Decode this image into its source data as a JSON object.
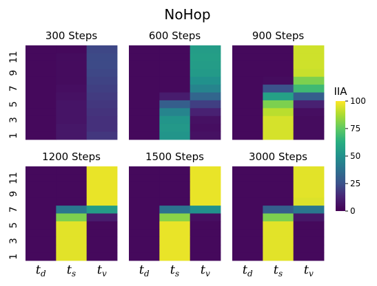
{
  "chart_data": {
    "type": "heatmap",
    "title": "NoHop",
    "colorbar": {
      "label": "IIA",
      "range": [
        0,
        100
      ],
      "ticks": [
        "0",
        "25",
        "50",
        "75",
        "100"
      ],
      "colormap": "viridis"
    },
    "columns": [
      {
        "base": "t",
        "sub": "d"
      },
      {
        "base": "t",
        "sub": "s"
      },
      {
        "base": "t",
        "sub": "v"
      }
    ],
    "y_tick_labels": [
      "1",
      "3",
      "5",
      "7",
      "9",
      "11"
    ],
    "rows_top_to_bottom": [
      12,
      11,
      10,
      9,
      8,
      7,
      6,
      5,
      4,
      3,
      2,
      1
    ],
    "panels": [
      {
        "title": "300 Steps",
        "values": [
          [
            3,
            3,
            22
          ],
          [
            3,
            4,
            23
          ],
          [
            3,
            4,
            23
          ],
          [
            3,
            4,
            22
          ],
          [
            3,
            4,
            21
          ],
          [
            3,
            5,
            20
          ],
          [
            3,
            6,
            19
          ],
          [
            3,
            7,
            18
          ],
          [
            3,
            7,
            17
          ],
          [
            3,
            7,
            16
          ],
          [
            3,
            8,
            16
          ],
          [
            3,
            8,
            18
          ]
        ]
      },
      {
        "title": "600 Steps",
        "values": [
          [
            3,
            3,
            55
          ],
          [
            3,
            3,
            56
          ],
          [
            3,
            3,
            55
          ],
          [
            3,
            3,
            54
          ],
          [
            3,
            3,
            50
          ],
          [
            3,
            3,
            45
          ],
          [
            3,
            10,
            33
          ],
          [
            3,
            30,
            20
          ],
          [
            3,
            45,
            12
          ],
          [
            3,
            52,
            6
          ],
          [
            3,
            53,
            5
          ],
          [
            3,
            52,
            6
          ]
        ]
      },
      {
        "title": "900 Steps",
        "values": [
          [
            3,
            3,
            93
          ],
          [
            3,
            3,
            93
          ],
          [
            3,
            3,
            93
          ],
          [
            3,
            3,
            92
          ],
          [
            3,
            4,
            80
          ],
          [
            3,
            25,
            68
          ],
          [
            3,
            57,
            30
          ],
          [
            3,
            80,
            12
          ],
          [
            3,
            90,
            5
          ],
          [
            3,
            94,
            4
          ],
          [
            3,
            94,
            4
          ],
          [
            3,
            94,
            4
          ]
        ]
      },
      {
        "title": "1200 Steps",
        "values": [
          [
            3,
            3,
            97
          ],
          [
            3,
            3,
            97
          ],
          [
            3,
            3,
            97
          ],
          [
            3,
            3,
            97
          ],
          [
            3,
            3,
            97
          ],
          [
            3,
            40,
            55
          ],
          [
            3,
            80,
            10
          ],
          [
            3,
            96,
            3
          ],
          [
            3,
            96,
            3
          ],
          [
            3,
            96,
            3
          ],
          [
            3,
            96,
            3
          ],
          [
            3,
            96,
            3
          ]
        ]
      },
      {
        "title": "1500 Steps",
        "values": [
          [
            3,
            3,
            97
          ],
          [
            3,
            3,
            97
          ],
          [
            3,
            3,
            97
          ],
          [
            3,
            3,
            97
          ],
          [
            3,
            3,
            97
          ],
          [
            3,
            38,
            50
          ],
          [
            3,
            82,
            5
          ],
          [
            3,
            97,
            3
          ],
          [
            3,
            97,
            3
          ],
          [
            3,
            97,
            3
          ],
          [
            3,
            97,
            3
          ],
          [
            3,
            97,
            3
          ]
        ]
      },
      {
        "title": "3000 Steps",
        "values": [
          [
            3,
            3,
            96
          ],
          [
            3,
            3,
            96
          ],
          [
            3,
            3,
            96
          ],
          [
            3,
            3,
            96
          ],
          [
            3,
            3,
            95
          ],
          [
            3,
            30,
            40
          ],
          [
            3,
            80,
            8
          ],
          [
            3,
            96,
            3
          ],
          [
            3,
            96,
            3
          ],
          [
            3,
            96,
            3
          ],
          [
            3,
            96,
            3
          ],
          [
            3,
            96,
            3
          ]
        ]
      }
    ]
  }
}
